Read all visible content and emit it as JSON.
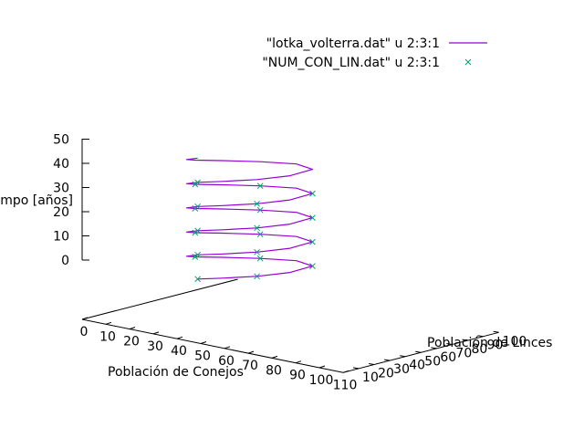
{
  "chart_data": {
    "type": "scatter",
    "projection": "3d",
    "title": "",
    "xlabel": "Población de Conejos",
    "ylabel": "Población de Linces",
    "zlabel": "Tiempo [años]",
    "xlim": [
      0,
      110
    ],
    "ylim": [
      0,
      100
    ],
    "zlim": [
      0,
      50
    ],
    "xticks": [
      "0",
      "10",
      "20",
      "30",
      "40",
      "50",
      "60",
      "70",
      "80",
      "90",
      "100",
      "110"
    ],
    "yticks": [
      "10",
      "20",
      "30",
      "40",
      "50",
      "60",
      "70",
      "80",
      "90",
      "100"
    ],
    "zticks": [
      "0",
      "10",
      "20",
      "30",
      "40",
      "50"
    ],
    "grid": false,
    "legend_position": "top-right",
    "series": [
      {
        "name": "\"lotka_volterra.dat\" u 2:3:1",
        "style": "line",
        "color": "#9400d3",
        "note_points": "x = conejos, y = linces, z = tiempo",
        "points": [
          [
            30,
            8,
            0
          ],
          [
            42,
            6,
            1
          ],
          [
            55,
            8,
            2
          ],
          [
            63,
            17,
            3
          ],
          [
            62,
            33,
            4
          ],
          [
            50,
            41,
            5
          ],
          [
            38,
            36,
            6
          ],
          [
            28,
            27,
            7
          ],
          [
            23,
            17,
            8
          ],
          [
            24,
            10,
            9
          ],
          [
            30,
            8,
            10
          ],
          [
            42,
            6,
            11
          ],
          [
            55,
            8,
            12
          ],
          [
            63,
            17,
            13
          ],
          [
            62,
            33,
            14
          ],
          [
            50,
            41,
            15
          ],
          [
            38,
            36,
            16
          ],
          [
            28,
            27,
            17
          ],
          [
            23,
            17,
            18
          ],
          [
            24,
            10,
            19
          ],
          [
            30,
            8,
            20
          ],
          [
            42,
            6,
            21
          ],
          [
            55,
            8,
            22
          ],
          [
            63,
            17,
            23
          ],
          [
            62,
            33,
            24
          ],
          [
            50,
            41,
            25
          ],
          [
            38,
            36,
            26
          ],
          [
            28,
            27,
            27
          ],
          [
            23,
            17,
            28
          ],
          [
            24,
            10,
            29
          ],
          [
            30,
            8,
            30
          ],
          [
            42,
            6,
            31
          ],
          [
            55,
            8,
            32
          ],
          [
            63,
            17,
            33
          ],
          [
            62,
            33,
            34
          ],
          [
            50,
            41,
            35
          ],
          [
            38,
            36,
            36
          ],
          [
            28,
            27,
            37
          ],
          [
            23,
            17,
            38
          ],
          [
            24,
            10,
            39
          ],
          [
            30,
            8,
            40
          ],
          [
            42,
            6,
            41
          ],
          [
            55,
            8,
            42
          ],
          [
            63,
            17,
            43
          ],
          [
            62,
            33,
            44
          ],
          [
            50,
            41,
            45
          ],
          [
            38,
            36,
            46
          ],
          [
            28,
            27,
            47
          ],
          [
            23,
            17,
            48
          ],
          [
            24,
            10,
            49
          ],
          [
            30,
            8,
            50
          ]
        ]
      },
      {
        "name": "\"NUM_CON_LIN.dat\" u 2:3:1",
        "style": "points",
        "color": "#009e73",
        "points": [
          [
            30,
            8,
            0
          ],
          [
            55,
            8,
            2
          ],
          [
            62,
            33,
            4
          ],
          [
            38,
            36,
            6
          ],
          [
            23,
            17,
            8
          ],
          [
            30,
            8,
            10
          ],
          [
            55,
            8,
            12
          ],
          [
            62,
            33,
            14
          ],
          [
            38,
            36,
            16
          ],
          [
            23,
            17,
            18
          ],
          [
            30,
            8,
            20
          ],
          [
            55,
            8,
            22
          ],
          [
            62,
            33,
            24
          ],
          [
            38,
            36,
            26
          ],
          [
            23,
            17,
            28
          ],
          [
            30,
            8,
            30
          ],
          [
            55,
            8,
            32
          ],
          [
            62,
            33,
            34
          ],
          [
            38,
            36,
            36
          ],
          [
            23,
            17,
            38
          ],
          [
            30,
            8,
            40
          ]
        ]
      }
    ]
  }
}
